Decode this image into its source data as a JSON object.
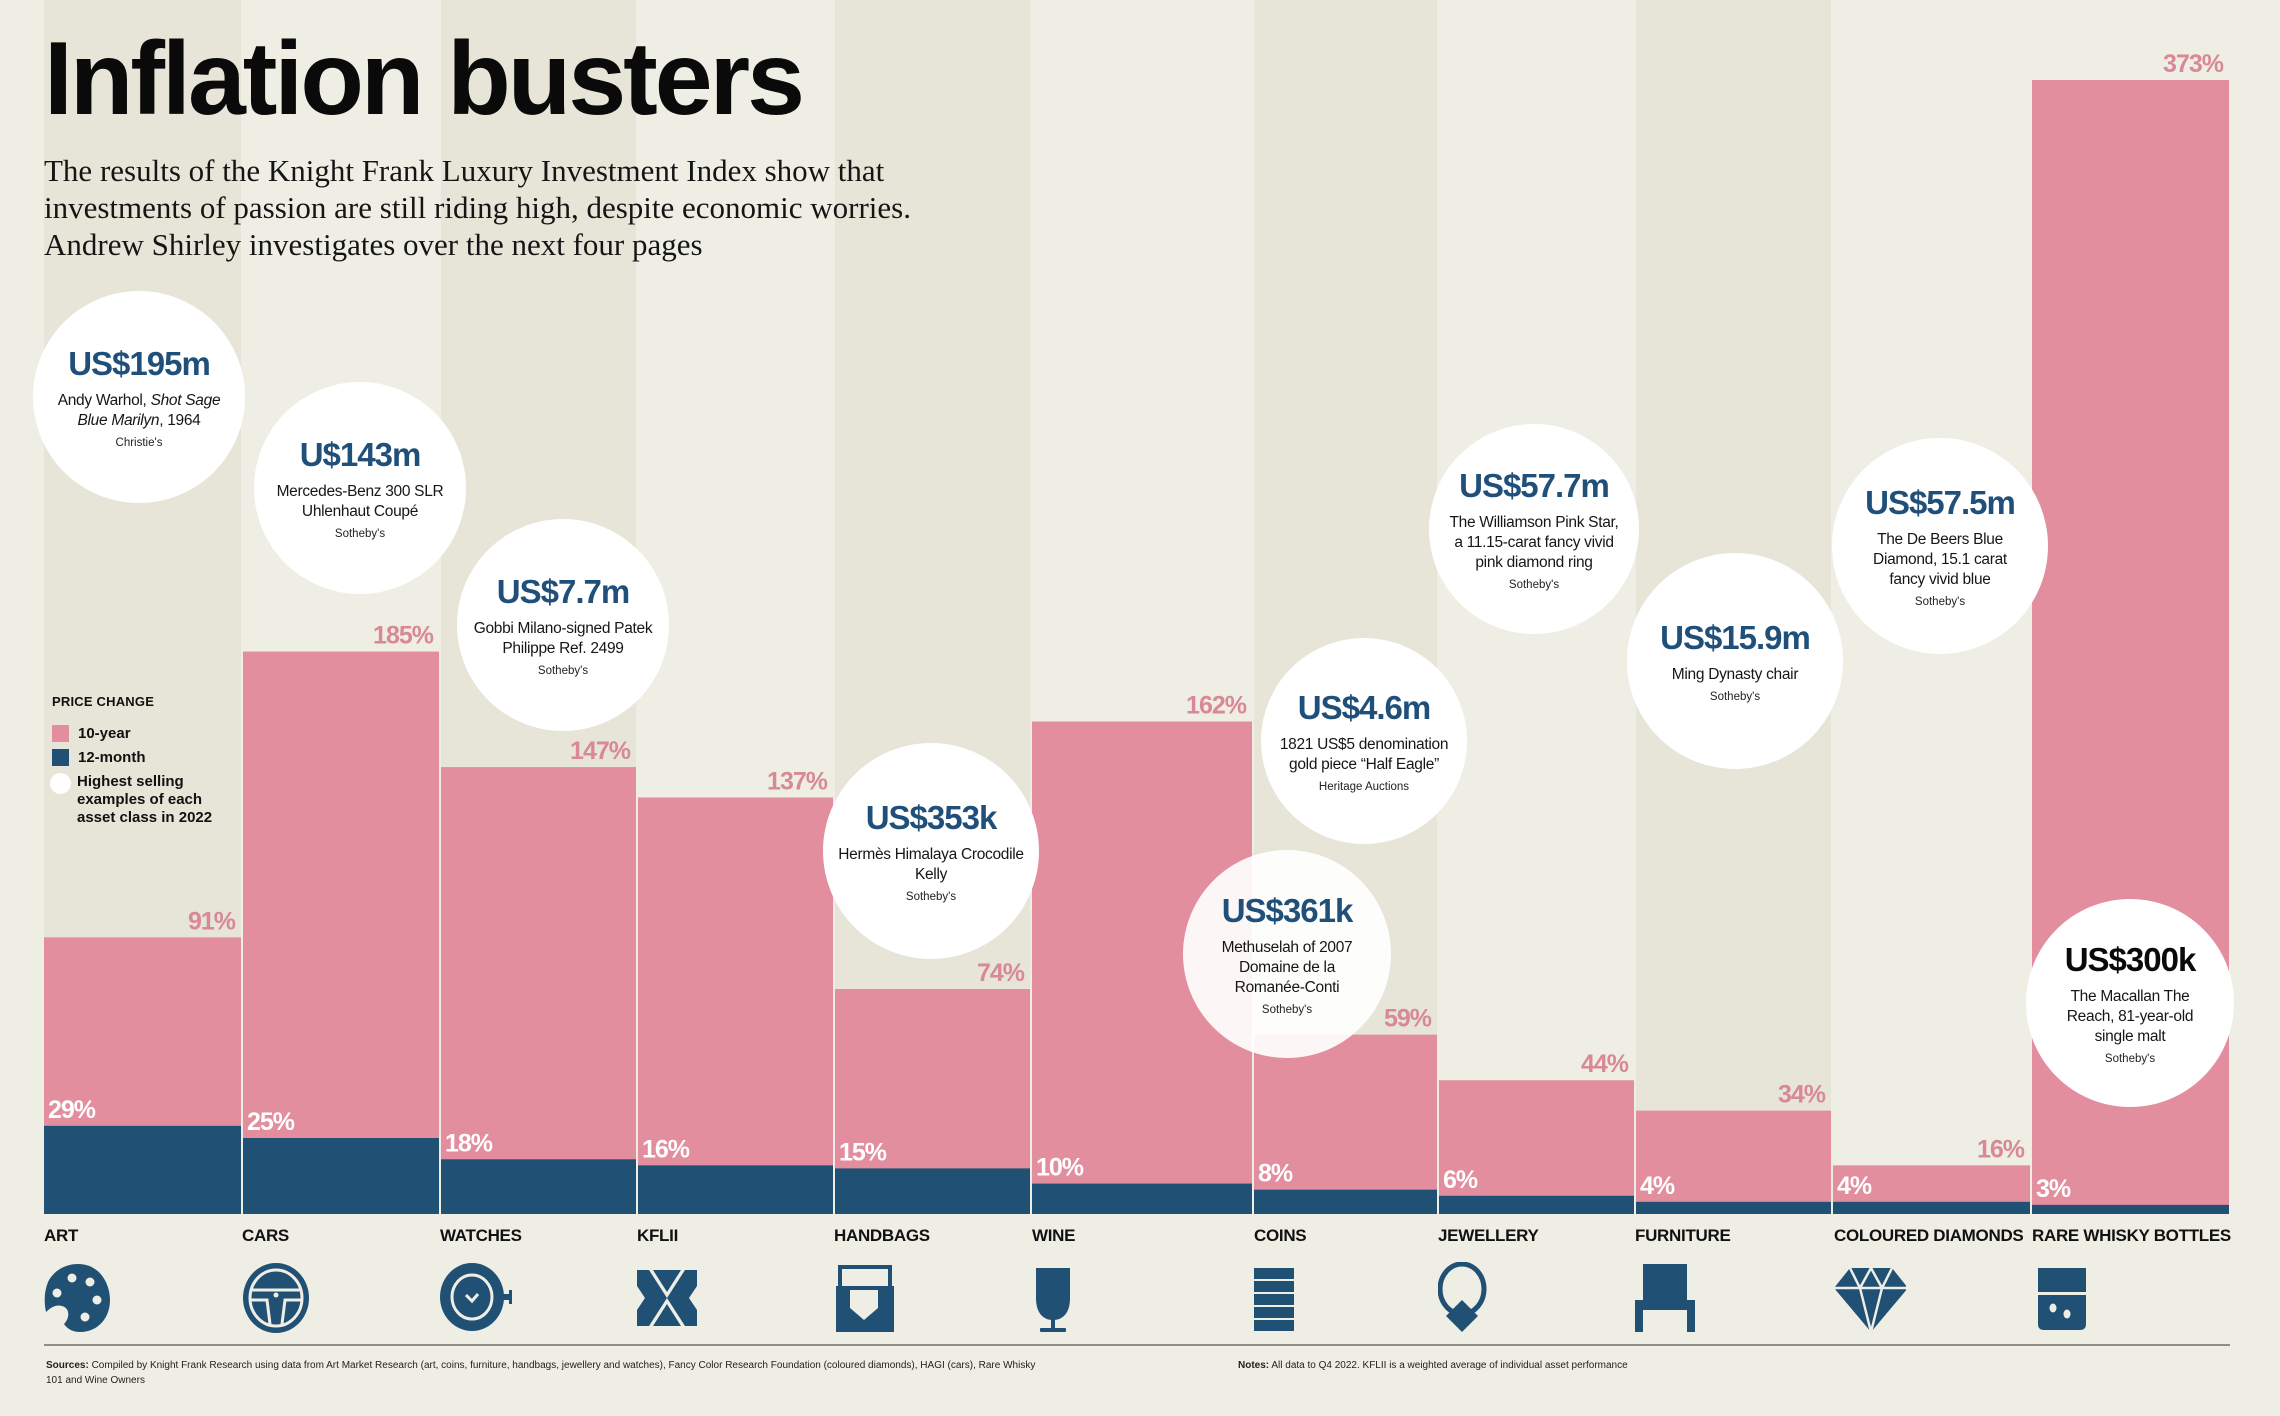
{
  "header": {
    "title": "Inflation busters",
    "subtitle": "The results of the Knight Frank Luxury Investment Index show that investments of passion are still riding high, despite economic worries. Andrew Shirley investigates over the next four pages"
  },
  "legend": {
    "title": "PRICE CHANGE",
    "items": [
      {
        "label": "10-year",
        "color": "#e38e9e"
      },
      {
        "label": "12-month",
        "color": "#215075"
      },
      {
        "label": "Highest selling examples of each asset class in 2022",
        "color": "#ffffff"
      }
    ]
  },
  "colors": {
    "ten_year": "#e38e9e",
    "twelve_month": "#215075",
    "ten_year_label": "#d88896",
    "background": "#efeee4",
    "column_shade": "#e6e5d8",
    "bubble_price": "#20507a"
  },
  "chart_data": {
    "type": "bar",
    "title": "Inflation busters",
    "xlabel": "",
    "ylabel": "Price change (%)",
    "ylim": [
      0,
      373
    ],
    "grid": false,
    "legend_position": "left",
    "categories": [
      "ART",
      "CARS",
      "WATCHES",
      "KFLII",
      "HANDBAGS",
      "WINE",
      "COINS",
      "JEWELLERY",
      "FURNITURE",
      "COLOURED DIAMONDS",
      "RARE WHISKY BOTTLES"
    ],
    "series": [
      {
        "name": "10-year",
        "values": [
          91,
          185,
          147,
          137,
          74,
          162,
          59,
          44,
          34,
          16,
          373
        ]
      },
      {
        "name": "12-month",
        "values": [
          29,
          25,
          18,
          16,
          15,
          10,
          8,
          6,
          4,
          4,
          3
        ]
      }
    ],
    "icons": [
      "palette-icon",
      "steering-wheel-icon",
      "watch-icon",
      "kflii-logo-icon",
      "handbag-icon",
      "wine-glass-icon",
      "coin-stack-icon",
      "ring-icon",
      "chair-icon",
      "diamond-icon",
      "whisky-glass-icon"
    ]
  },
  "bubbles": [
    {
      "price": "US$195m",
      "desc_plain": "Andy Warhol, ",
      "desc_italic": "Shot Sage Blue Marilyn",
      "desc_after": ", 1964",
      "house": "Christie's",
      "category": "ART"
    },
    {
      "price": "U$143m",
      "desc": "Mercedes-Benz 300 SLR Uhlenhaut Coupé",
      "house": "Sotheby's",
      "category": "CARS"
    },
    {
      "price": "US$7.7m",
      "desc": "Gobbi Milano-signed Patek Philippe Ref. 2499",
      "house": "Sotheby's",
      "category": "WATCHES"
    },
    {
      "price": "US$353k",
      "desc": "Hermès Himalaya Crocodile Kelly",
      "house": "Sotheby's",
      "category": "HANDBAGS"
    },
    {
      "price": "US$361k",
      "desc": "Methuselah of 2007 Domaine de la Romanée-Conti",
      "house": "Sotheby's",
      "category": "WINE"
    },
    {
      "price": "US$4.6m",
      "desc": "1821 US$5 denomination gold piece “Half Eagle”",
      "house": "Heritage Auctions",
      "category": "COINS"
    },
    {
      "price": "US$57.7m",
      "desc": "The Williamson Pink Star, a 11.15-carat fancy vivid pink diamond ring",
      "house": "Sotheby's",
      "category": "JEWELLERY"
    },
    {
      "price": "US$15.9m",
      "desc": "Ming Dynasty chair",
      "house": "Sotheby's",
      "category": "FURNITURE"
    },
    {
      "price": "US$57.5m",
      "desc": "The De Beers Blue Diamond, 15.1 carat fancy vivid blue",
      "house": "Sotheby's",
      "category": "COLOURED DIAMONDS"
    },
    {
      "price": "US$300k",
      "desc": "The Macallan The Reach, 81-year-old single malt",
      "house": "Sotheby's",
      "category": "RARE WHISKY BOTTLES"
    }
  ],
  "footer": {
    "sources_label": "Sources:",
    "sources_text": "Compiled by Knight Frank Research using data from Art Market Research (art, coins, furniture, handbags, jewellery and watches), Fancy Color Research Foundation (coloured diamonds), HAGI (cars), Rare Whisky 101 and Wine Owners",
    "notes_label": "Notes:",
    "notes_text": "All data to Q4 2022. KFLII is a weighted average of individual asset performance"
  }
}
